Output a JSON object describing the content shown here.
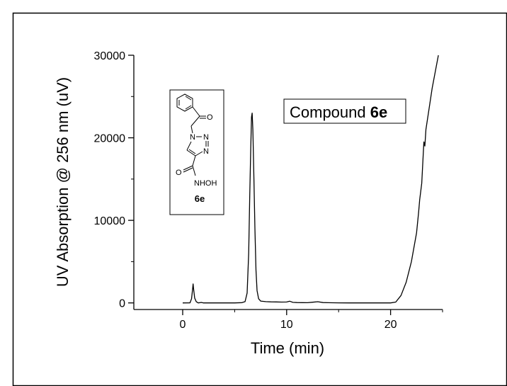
{
  "chart_data": {
    "type": "line",
    "xlabel": "Time (min)",
    "ylabel": "UV Absorption @ 256 nm (uV)",
    "xlim": [
      -4.7,
      25.0
    ],
    "ylim": [
      -800,
      30000
    ],
    "xticks": [
      0,
      10,
      20
    ],
    "yticks": [
      0,
      10000,
      20000,
      30000
    ],
    "tick_labels_x": [
      "0",
      "10",
      "20"
    ],
    "tick_labels_y": [
      "0",
      "10000",
      "20000",
      "30000"
    ],
    "grid": false,
    "annotation_text": "Compound ",
    "annotation_bold": "6e",
    "inset_label": "6e",
    "inset_atoms": {
      "carbonyl_O": "O",
      "triazole_N1": "N",
      "triazole_N2": "N",
      "triazole_N3": "N",
      "amide_O": "O",
      "nhoh": "NHOH"
    },
    "line_color": "#000000",
    "series": [
      {
        "values": [
          [
            0.0,
            0
          ],
          [
            0.7,
            10
          ],
          [
            0.85,
            500
          ],
          [
            0.95,
            1600
          ],
          [
            1.0,
            2300
          ],
          [
            1.05,
            1700
          ],
          [
            1.15,
            600
          ],
          [
            1.3,
            150
          ],
          [
            1.5,
            0
          ],
          [
            1.8,
            60
          ],
          [
            2.0,
            0
          ],
          [
            3.0,
            0
          ],
          [
            4.0,
            0
          ],
          [
            5.0,
            0
          ],
          [
            5.7,
            30
          ],
          [
            6.0,
            150
          ],
          [
            6.2,
            1200
          ],
          [
            6.35,
            6000
          ],
          [
            6.45,
            13000
          ],
          [
            6.55,
            19000
          ],
          [
            6.62,
            22500
          ],
          [
            6.68,
            23000
          ],
          [
            6.75,
            21000
          ],
          [
            6.85,
            15000
          ],
          [
            6.95,
            9000
          ],
          [
            7.05,
            4000
          ],
          [
            7.15,
            1500
          ],
          [
            7.3,
            500
          ],
          [
            7.5,
            220
          ],
          [
            8.0,
            150
          ],
          [
            8.5,
            130
          ],
          [
            9.0,
            120
          ],
          [
            9.5,
            100
          ],
          [
            10.0,
            110
          ],
          [
            10.3,
            200
          ],
          [
            10.6,
            70
          ],
          [
            11.0,
            40
          ],
          [
            11.5,
            30
          ],
          [
            12.0,
            20
          ],
          [
            12.5,
            80
          ],
          [
            13.0,
            140
          ],
          [
            13.5,
            40
          ],
          [
            14.0,
            20
          ],
          [
            15.0,
            10
          ],
          [
            16.0,
            0
          ],
          [
            17.0,
            0
          ],
          [
            18.0,
            0
          ],
          [
            19.0,
            0
          ],
          [
            20.0,
            0
          ],
          [
            20.5,
            100
          ],
          [
            21.0,
            900
          ],
          [
            21.5,
            2500
          ],
          [
            22.0,
            5000
          ],
          [
            22.5,
            8500
          ],
          [
            22.7,
            11000
          ],
          [
            22.8,
            12500
          ],
          [
            23.0,
            14500
          ],
          [
            23.1,
            17000
          ],
          [
            23.2,
            19500
          ],
          [
            23.3,
            19000
          ],
          [
            23.4,
            21000
          ],
          [
            23.7,
            23500
          ],
          [
            24.0,
            26000
          ],
          [
            24.3,
            28000
          ],
          [
            24.6,
            30000
          ]
        ]
      }
    ]
  }
}
